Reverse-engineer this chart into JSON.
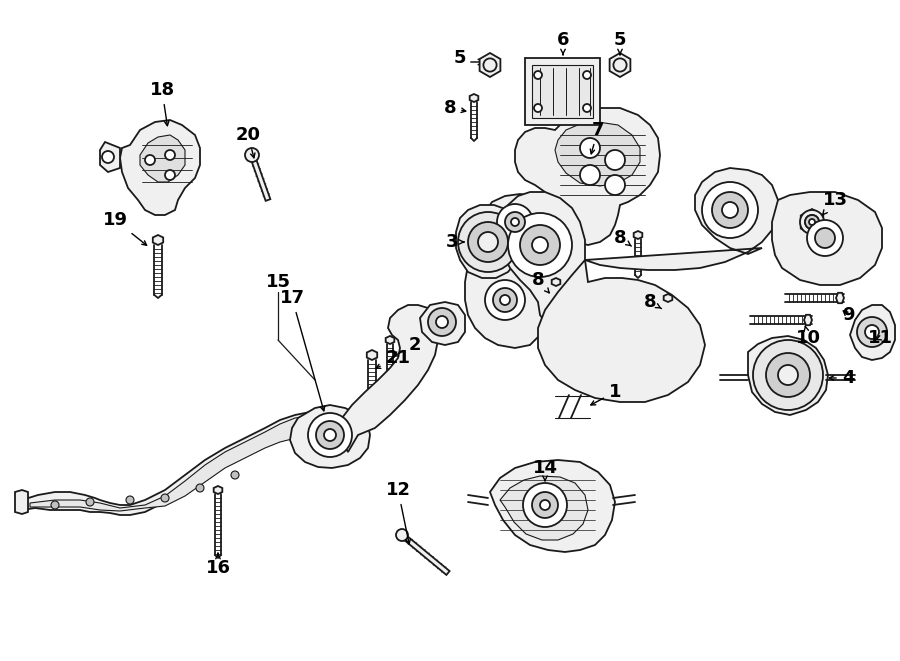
{
  "bg_color": "#ffffff",
  "line_color": "#1a1a1a",
  "lw": 1.3,
  "fig_w": 9.0,
  "fig_h": 6.61,
  "dpi": 100
}
